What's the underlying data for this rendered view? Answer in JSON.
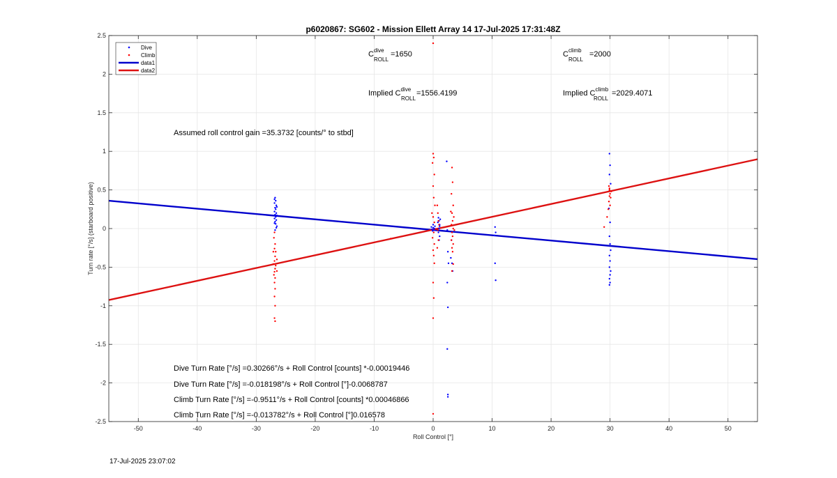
{
  "chart_data": {
    "type": "scatter",
    "title": "p6020867: SG602 - Mission Ellett Array 14 17-Jul-2025 17:31:48Z",
    "xlabel": "Roll Control [°]",
    "ylabel": "Turn rate [°/s] (starboard positive)",
    "xlim": [
      -55,
      55
    ],
    "ylim": [
      -2.5,
      2.5
    ],
    "xticks": [
      -50,
      -40,
      -30,
      -20,
      -10,
      0,
      10,
      20,
      30,
      40,
      50
    ],
    "yticks": [
      -2.5,
      -2,
      -1.5,
      -1,
      -0.5,
      0,
      0.5,
      1,
      1.5,
      2,
      2.5
    ],
    "grid": true,
    "legend_position": "top-left",
    "legend": [
      "Dive",
      "Climb",
      "data1",
      "data2"
    ],
    "colors": {
      "dive": "#0000ff",
      "climb": "#ff0000",
      "data1": "#0000cc",
      "data2": "#dd1111"
    },
    "series": [
      {
        "name": "Dive",
        "kind": "points",
        "points": [
          [
            -26.8,
            0.4
          ],
          [
            -26.7,
            0.36
          ],
          [
            -26.9,
            0.33
          ],
          [
            -26.6,
            0.3
          ],
          [
            -26.8,
            0.27
          ],
          [
            -26.7,
            0.25
          ],
          [
            -26.9,
            0.22
          ],
          [
            -26.6,
            0.2
          ],
          [
            -26.8,
            0.18
          ],
          [
            -26.7,
            0.15
          ],
          [
            -26.9,
            0.13
          ],
          [
            -26.6,
            0.11
          ],
          [
            -26.8,
            0.09
          ],
          [
            -26.7,
            0.06
          ],
          [
            -26.5,
            0.03
          ],
          [
            -26.6,
            0.01
          ],
          [
            -26.9,
            0.38
          ],
          [
            -26.5,
            0.28
          ],
          [
            -26.5,
            0.17
          ],
          [
            -26.9,
            0.07
          ],
          [
            -26.8,
            -0.02
          ],
          [
            -0.3,
            0.02
          ],
          [
            -0.2,
            -0.01
          ],
          [
            0.0,
            0.01
          ],
          [
            0.1,
            -0.02
          ],
          [
            0.2,
            0.0
          ],
          [
            -0.1,
            -0.03
          ],
          [
            0.3,
            0.03
          ],
          [
            0.0,
            0.05
          ],
          [
            0.9,
            0.14
          ],
          [
            1.0,
            0.1
          ],
          [
            1.1,
            0.05
          ],
          [
            1.0,
            0.0
          ],
          [
            0.9,
            -0.05
          ],
          [
            1.1,
            -0.1
          ],
          [
            1.2,
            0.12
          ],
          [
            0.8,
            0.08
          ],
          [
            1.0,
            -0.15
          ],
          [
            1.1,
            0.03
          ],
          [
            2.3,
            0.87
          ],
          [
            2.4,
            -0.02
          ],
          [
            2.5,
            -0.3
          ],
          [
            2.6,
            -0.45
          ],
          [
            2.4,
            -0.7
          ],
          [
            2.5,
            -1.02
          ],
          [
            2.4,
            -1.56
          ],
          [
            2.5,
            -2.15
          ],
          [
            2.5,
            -2.18
          ],
          [
            3.1,
            -0.15
          ],
          [
            3.2,
            -0.45
          ],
          [
            3.3,
            -0.55
          ],
          [
            3.0,
            -0.38
          ],
          [
            10.5,
            0.02
          ],
          [
            10.6,
            -0.05
          ],
          [
            10.4,
            -0.09
          ],
          [
            10.5,
            -0.45
          ],
          [
            10.6,
            -0.67
          ],
          [
            29.9,
            0.97
          ],
          [
            30.0,
            0.82
          ],
          [
            29.9,
            0.7
          ],
          [
            30.1,
            0.58
          ],
          [
            29.8,
            0.26
          ],
          [
            30.0,
            0.08
          ],
          [
            29.9,
            -0.1
          ],
          [
            30.0,
            -0.2
          ],
          [
            30.1,
            -0.28
          ],
          [
            29.9,
            -0.35
          ],
          [
            30.0,
            -0.42
          ],
          [
            29.9,
            -0.5
          ],
          [
            30.1,
            -0.55
          ],
          [
            30.0,
            -0.6
          ],
          [
            29.9,
            -0.65
          ],
          [
            30.0,
            -0.7
          ],
          [
            29.9,
            -0.73
          ]
        ]
      },
      {
        "name": "Climb",
        "kind": "points",
        "points": [
          [
            -26.9,
            -0.05
          ],
          [
            -27.0,
            -0.12
          ],
          [
            -26.8,
            -0.2
          ],
          [
            -26.9,
            -0.26
          ],
          [
            -26.7,
            -0.3
          ],
          [
            -26.8,
            -0.36
          ],
          [
            -26.9,
            -0.42
          ],
          [
            -26.7,
            -0.48
          ],
          [
            -26.8,
            -0.52
          ],
          [
            -26.9,
            -0.56
          ],
          [
            -27.0,
            -0.6
          ],
          [
            -26.8,
            -0.64
          ],
          [
            -26.9,
            -0.7
          ],
          [
            -26.8,
            -0.78
          ],
          [
            -26.9,
            -0.88
          ],
          [
            -26.8,
            -1.0
          ],
          [
            -26.9,
            -1.16
          ],
          [
            -26.8,
            -1.2
          ],
          [
            -26.5,
            -0.55
          ],
          [
            -26.5,
            -0.4
          ],
          [
            -27.1,
            -0.46
          ],
          [
            -27.1,
            -0.3
          ],
          [
            -7.2,
            -0.13
          ],
          [
            0.0,
            2.4
          ],
          [
            0.0,
            0.97
          ],
          [
            0.1,
            0.92
          ],
          [
            -0.1,
            0.85
          ],
          [
            0.2,
            0.7
          ],
          [
            0.0,
            0.55
          ],
          [
            0.1,
            0.4
          ],
          [
            0.3,
            0.3
          ],
          [
            -0.2,
            0.2
          ],
          [
            0.0,
            0.15
          ],
          [
            0.2,
            0.08
          ],
          [
            0.1,
            -0.05
          ],
          [
            -0.1,
            -0.12
          ],
          [
            0.2,
            -0.2
          ],
          [
            0.0,
            -0.28
          ],
          [
            0.1,
            -0.35
          ],
          [
            0.2,
            -0.45
          ],
          [
            0.0,
            -0.7
          ],
          [
            0.1,
            -0.9
          ],
          [
            0.0,
            -1.16
          ],
          [
            0.0,
            -2.4
          ],
          [
            0.7,
            0.3
          ],
          [
            0.8,
            0.2
          ],
          [
            0.9,
            0.1
          ],
          [
            0.8,
            -0.02
          ],
          [
            0.9,
            -0.15
          ],
          [
            0.7,
            -0.25
          ],
          [
            1.0,
            0.05
          ],
          [
            3.2,
            0.79
          ],
          [
            3.3,
            0.6
          ],
          [
            3.1,
            0.45
          ],
          [
            3.4,
            0.3
          ],
          [
            3.2,
            0.2
          ],
          [
            3.3,
            0.1
          ],
          [
            3.1,
            0.05
          ],
          [
            3.4,
            0.0
          ],
          [
            3.2,
            -0.05
          ],
          [
            3.3,
            -0.1
          ],
          [
            3.1,
            -0.15
          ],
          [
            3.4,
            -0.2
          ],
          [
            3.2,
            -0.25
          ],
          [
            3.3,
            -0.3
          ],
          [
            3.5,
            0.15
          ],
          [
            3.0,
            0.22
          ],
          [
            3.6,
            -0.02
          ],
          [
            3.4,
            -0.46
          ],
          [
            3.2,
            -0.55
          ],
          [
            29.8,
            0.55
          ],
          [
            29.9,
            0.5
          ],
          [
            30.0,
            0.45
          ],
          [
            30.1,
            0.4
          ],
          [
            29.8,
            0.35
          ],
          [
            30.0,
            0.3
          ],
          [
            29.7,
            0.25
          ],
          [
            29.9,
            0.52
          ],
          [
            30.2,
            0.48
          ],
          [
            29.9,
            0.42
          ],
          [
            29.5,
            0.15
          ],
          [
            29.0,
            0.02
          ]
        ]
      },
      {
        "name": "data1",
        "kind": "line",
        "slope": -0.0068787,
        "intercept": -0.018198
      },
      {
        "name": "data2",
        "kind": "line",
        "slope": 0.016578,
        "intercept": -0.013782
      }
    ],
    "annotations": {
      "c_dive_base": "C",
      "c_dive_sup": "dive",
      "c_dive_sub": "ROLL",
      "c_dive_value": "=1650",
      "c_climb_base": "C",
      "c_climb_sup": "climb",
      "c_climb_sub": "ROLL",
      "c_climb_value": "=2000",
      "implied_prefix": "Implied C",
      "implied_dive_value": "=1556.4199",
      "implied_climb_value": "=2029.4071",
      "gain": "Assumed roll control gain =35.3732 [counts/° to stbd]",
      "eq1": "Dive Turn Rate [°/s] =0.30266°/s + Roll Control [counts] *-0.00019446",
      "eq2": "Dive Turn Rate [°/s] =-0.018198°/s + Roll Control [°]-0.0068787",
      "eq3": "Climb Turn Rate [°/s] =-0.9511°/s + Roll Control [counts] *0.00046866",
      "eq4": "Climb Turn Rate [°/s] =-0.013782°/s + Roll Control [°]0.016578"
    },
    "timestamp": "17-Jul-2025 23:07:02"
  }
}
